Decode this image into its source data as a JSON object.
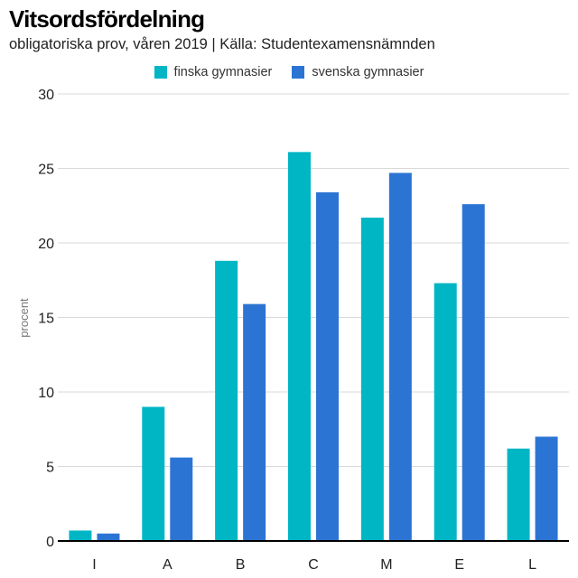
{
  "chart_data": {
    "type": "bar",
    "title": "Vitsordsfördelning",
    "subtitle": "obligatoriska prov, våren 2019 | Källa: Studentexamensnämnden",
    "xlabel": "",
    "ylabel": "procent",
    "ylim": [
      0,
      30
    ],
    "yticks": [
      0,
      5,
      10,
      15,
      20,
      25,
      30
    ],
    "categories": [
      "I",
      "A",
      "B",
      "C",
      "M",
      "E",
      "L"
    ],
    "series": [
      {
        "name": "finska gymnasier",
        "color": "#00b6c5",
        "values": [
          0.7,
          9.0,
          18.8,
          26.1,
          21.7,
          17.3,
          6.2
        ]
      },
      {
        "name": "svenska gymnasier",
        "color": "#2c74d4",
        "values": [
          0.5,
          5.6,
          15.9,
          23.4,
          24.7,
          22.6,
          7.0
        ]
      }
    ],
    "grid": true,
    "legend_position": "top-center"
  }
}
